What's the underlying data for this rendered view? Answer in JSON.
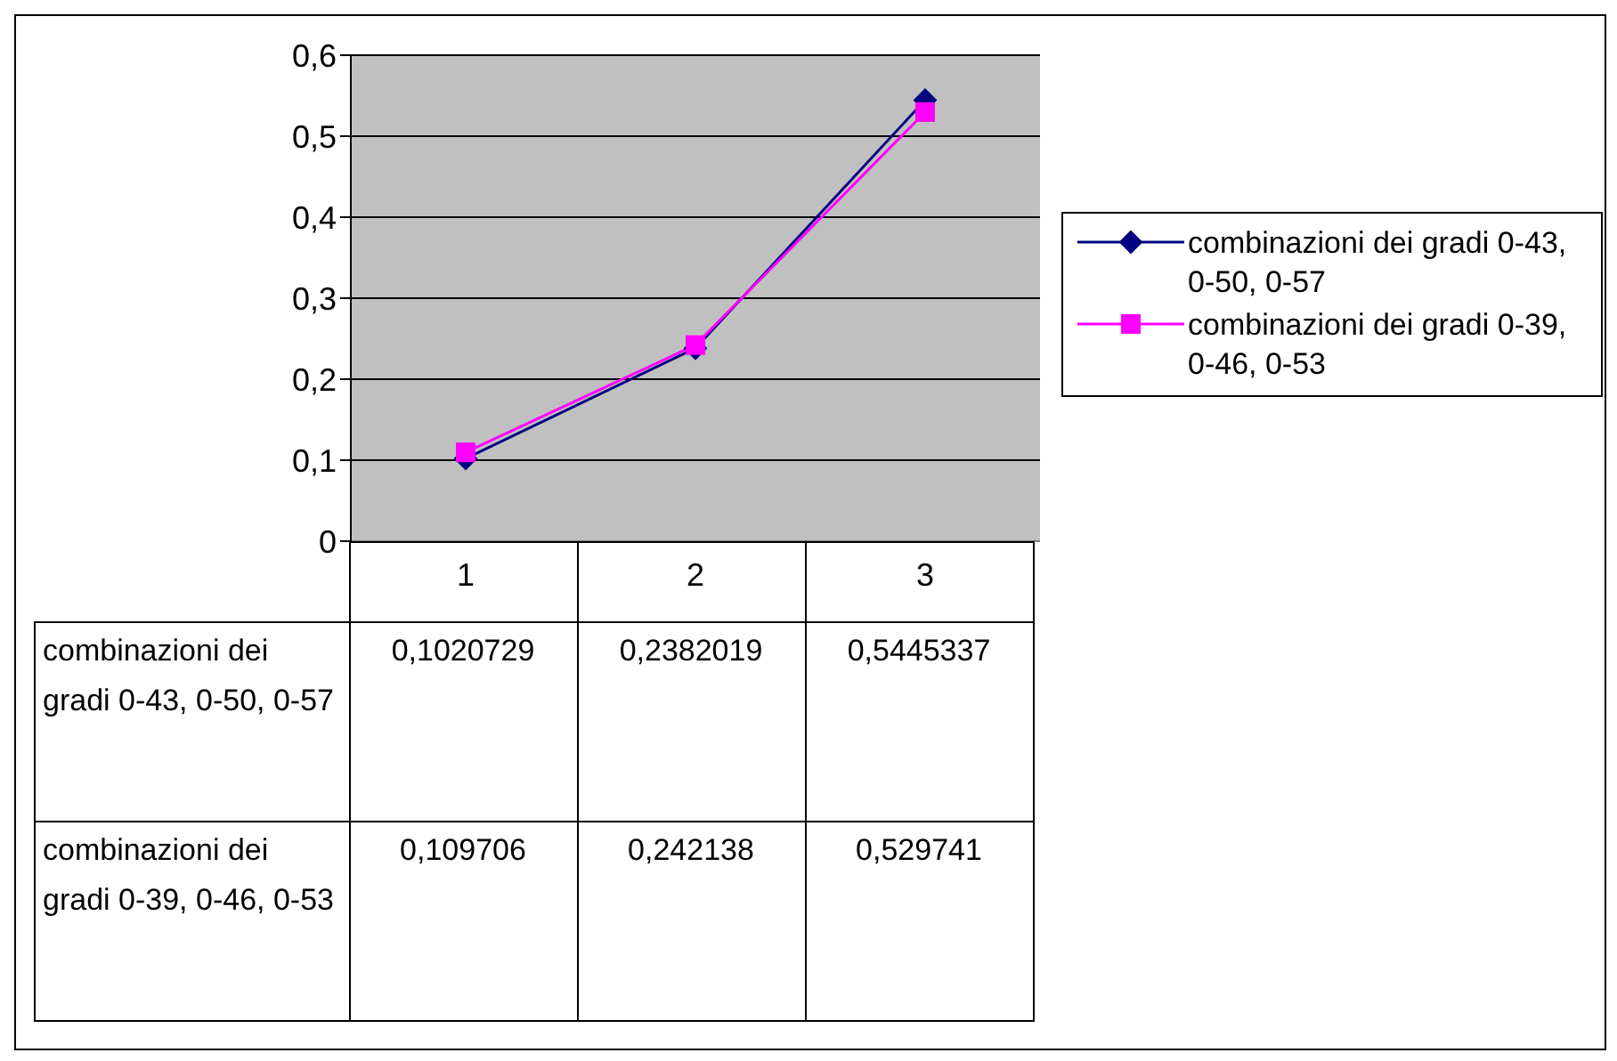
{
  "chart_data": {
    "type": "line",
    "categories": [
      "1",
      "2",
      "3"
    ],
    "series": [
      {
        "name": "combinazioni dei gradi 0-43, 0-50, 0-57",
        "color": "#000080",
        "marker": "diamond",
        "values": [
          0.1020729,
          0.2382019,
          0.5445337
        ],
        "value_labels": [
          "0,1020729",
          "0,2382019",
          "0,5445337"
        ]
      },
      {
        "name": "combinazioni dei gradi 0-39, 0-46, 0-53",
        "color": "#ff00ff",
        "marker": "square",
        "values": [
          0.109706,
          0.242138,
          0.529741
        ],
        "value_labels": [
          "0,109706",
          "0,242138",
          "0,529741"
        ]
      }
    ],
    "ylim": [
      0,
      0.6
    ],
    "yticks": [
      {
        "value": 0,
        "label": "0"
      },
      {
        "value": 0.1,
        "label": "0,1"
      },
      {
        "value": 0.2,
        "label": "0,2"
      },
      {
        "value": 0.3,
        "label": "0,3"
      },
      {
        "value": 0.4,
        "label": "0,4"
      },
      {
        "value": 0.5,
        "label": "0,5"
      },
      {
        "value": 0.6,
        "label": "0,6"
      }
    ],
    "grid": "y",
    "legend": "right"
  }
}
